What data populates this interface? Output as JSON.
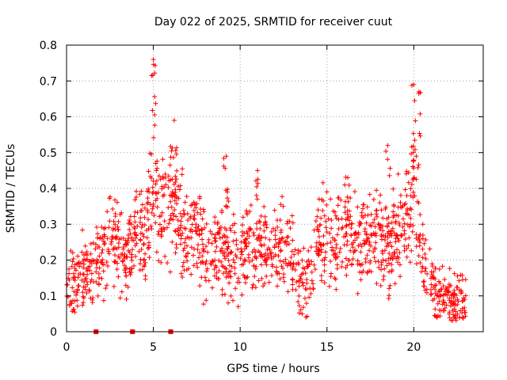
{
  "chart_data": {
    "type": "scatter",
    "title": "Day 022 of 2025, SRMTID for receiver cuut",
    "xlabel": "GPS time / hours",
    "ylabel": "SRMTID / TECUs",
    "xlim": [
      0,
      24
    ],
    "ylim": [
      0,
      0.8
    ],
    "xticks": [
      0,
      5,
      10,
      15,
      20
    ],
    "yticks": [
      0,
      0.1,
      0.2,
      0.3,
      0.4,
      0.5,
      0.6,
      0.7,
      0.8
    ],
    "xtick_labels": [
      "0",
      "5",
      "10",
      "15",
      "20"
    ],
    "ytick_labels": [
      "0",
      "0.1",
      "0.2",
      "0.3",
      "0.4",
      "0.5",
      "0.6",
      "0.7",
      "0.8"
    ],
    "grid": true,
    "marker": "+",
    "color": "#ff0000",
    "trend": [
      [
        0.0,
        0.13
      ],
      [
        0.5,
        0.13
      ],
      [
        1.0,
        0.16
      ],
      [
        1.5,
        0.18
      ],
      [
        2.0,
        0.2
      ],
      [
        2.5,
        0.27
      ],
      [
        3.0,
        0.24
      ],
      [
        3.5,
        0.2
      ],
      [
        4.0,
        0.28
      ],
      [
        4.5,
        0.26
      ],
      [
        5.0,
        0.42
      ],
      [
        5.5,
        0.34
      ],
      [
        6.0,
        0.36
      ],
      [
        6.5,
        0.3
      ],
      [
        7.0,
        0.28
      ],
      [
        7.5,
        0.3
      ],
      [
        8.0,
        0.24
      ],
      [
        8.5,
        0.22
      ],
      [
        9.0,
        0.24
      ],
      [
        9.5,
        0.2
      ],
      [
        10.0,
        0.2
      ],
      [
        10.5,
        0.24
      ],
      [
        11.0,
        0.24
      ],
      [
        11.5,
        0.22
      ],
      [
        12.0,
        0.24
      ],
      [
        12.5,
        0.26
      ],
      [
        13.0,
        0.18
      ],
      [
        13.5,
        0.14
      ],
      [
        14.0,
        0.16
      ],
      [
        14.5,
        0.25
      ],
      [
        15.0,
        0.28
      ],
      [
        15.5,
        0.25
      ],
      [
        16.0,
        0.3
      ],
      [
        16.5,
        0.24
      ],
      [
        17.0,
        0.26
      ],
      [
        17.5,
        0.24
      ],
      [
        18.0,
        0.28
      ],
      [
        18.5,
        0.22
      ],
      [
        19.0,
        0.26
      ],
      [
        19.5,
        0.3
      ],
      [
        20.0,
        0.38
      ],
      [
        20.5,
        0.2
      ],
      [
        21.0,
        0.13
      ],
      [
        21.5,
        0.12
      ],
      [
        22.0,
        0.09
      ],
      [
        22.5,
        0.09
      ],
      [
        23.0,
        0.08
      ]
    ],
    "peaks": [
      {
        "x": 5.0,
        "y": 0.76
      },
      {
        "x": 6.2,
        "y": 0.59
      },
      {
        "x": 20.0,
        "y": 0.69
      },
      {
        "x": 20.3,
        "y": 0.67
      },
      {
        "x": 9.2,
        "y": 0.49
      },
      {
        "x": 18.5,
        "y": 0.52
      },
      {
        "x": 11.0,
        "y": 0.45
      },
      {
        "x": 16.2,
        "y": 0.43
      }
    ],
    "zero_markers": [
      1.7,
      3.8,
      6.0
    ]
  }
}
